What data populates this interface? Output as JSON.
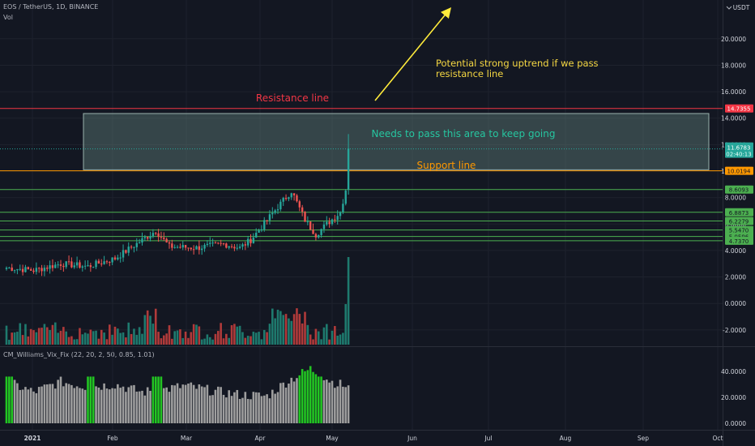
{
  "header": {
    "symbol": "EOS / TetherUS, 1D, BINANCE",
    "volume_label": "Vol",
    "indicator_label": "CM_Williams_Vix_Fix (22, 20, 2, 50, 0.85, 1.01)",
    "currency": "USDT"
  },
  "colors": {
    "background": "#131722",
    "up": "#26a69a",
    "down": "#ef5350",
    "vol_up": "#1e7a6e",
    "vol_down": "#b03a3a",
    "vix_bar": "#9e9e9e",
    "vix_signal": "#22c522",
    "resistance": "#f23645",
    "support": "#ff9800",
    "level": "#4caf50",
    "zone": "#6f918a",
    "arrow": "#ffeb3b"
  },
  "chart_data": [
    {
      "type": "candlestick",
      "title": "EOS / TetherUS, 1D, BINANCE",
      "x_ticks": [
        "2021",
        "Feb",
        "Mar",
        "Apr",
        "May",
        "Jun",
        "Jul",
        "Aug",
        "Sep",
        "Oct"
      ],
      "y_ticks": [
        "20.0000",
        "18.0000",
        "16.0000",
        "14.0000",
        "12.0000",
        "10.0000",
        "8.0000",
        "6.0000",
        "4.0000",
        "2.0000",
        "0.0000",
        "-2.0000"
      ],
      "ylim": [
        -3,
        22
      ],
      "price_keypoints": [
        [
          0,
          2.7
        ],
        [
          10,
          2.5
        ],
        [
          20,
          3.0
        ],
        [
          30,
          2.8
        ],
        [
          40,
          3.4
        ],
        [
          50,
          4.8
        ],
        [
          55,
          5.5
        ],
        [
          60,
          4.3
        ],
        [
          70,
          4.2
        ],
        [
          80,
          4.5
        ],
        [
          86,
          4.2
        ],
        [
          90,
          4.8
        ],
        [
          100,
          7.3
        ],
        [
          105,
          8.5
        ],
        [
          110,
          6.3
        ],
        [
          114,
          5.2
        ],
        [
          118,
          6.0
        ],
        [
          123,
          6.9
        ],
        [
          125,
          8.6
        ],
        [
          126,
          11.7
        ]
      ],
      "annotations": {
        "resistance": "Resistance line",
        "support": "Support line",
        "zone": "Needs to pass this area to keep going",
        "uptrend_line1": "Potential strong uptrend if we pass",
        "uptrend_line2": "resistance line"
      },
      "levels": [
        {
          "label": "14.7355",
          "value": 14.7355,
          "kind": "resistance"
        },
        {
          "label": "10.0194",
          "value": 10.0194,
          "kind": "support"
        },
        {
          "label": "8.6093",
          "value": 8.6093,
          "kind": "level"
        },
        {
          "label": "6.8873",
          "value": 6.8873,
          "kind": "level"
        },
        {
          "label": "6.2279",
          "value": 6.2279,
          "kind": "level"
        },
        {
          "label": "5.5470",
          "value": 5.547,
          "kind": "level"
        },
        {
          "label": "5.0596",
          "value": 5.0596,
          "kind": "level"
        },
        {
          "label": "4.7370",
          "value": 4.737,
          "kind": "level"
        }
      ],
      "last_price": {
        "value": "11.6783",
        "countdown": "02:40:13"
      }
    },
    {
      "type": "bar",
      "title": "CM_Williams_Vix_Fix (22, 20, 2, 50, 0.85, 1.01)",
      "y_ticks": [
        "40.0000",
        "20.0000",
        "0.0000"
      ],
      "ylim": [
        0,
        45
      ],
      "keypoints": [
        [
          0,
          32
        ],
        [
          10,
          24
        ],
        [
          20,
          32
        ],
        [
          30,
          28
        ],
        [
          40,
          30
        ],
        [
          50,
          24
        ],
        [
          58,
          26
        ],
        [
          66,
          29
        ],
        [
          76,
          25
        ],
        [
          86,
          22
        ],
        [
          96,
          21
        ],
        [
          104,
          33
        ],
        [
          112,
          42
        ],
        [
          120,
          32
        ],
        [
          126,
          28
        ]
      ]
    }
  ]
}
